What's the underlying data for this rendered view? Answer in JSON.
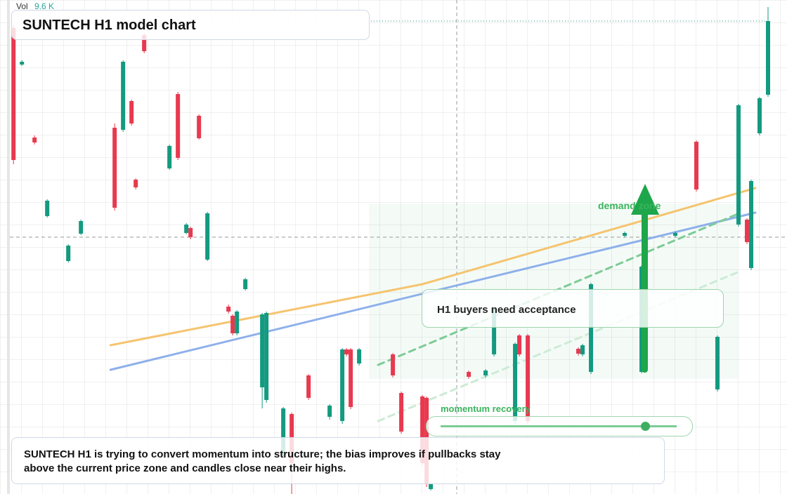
{
  "chart_data": {
    "type": "candlestick",
    "title": "SUNTECH H1 model chart",
    "legend": {
      "label": "Vol",
      "value": "9.6 K"
    },
    "x": [
      0,
      2,
      5,
      8,
      13,
      16,
      24,
      26,
      28,
      29,
      31,
      37,
      39,
      41,
      42,
      44,
      46,
      51,
      52,
      53,
      55,
      59,
      60,
      64,
      66,
      70,
      75,
      78,
      79,
      80,
      82,
      90,
      92,
      97,
      98,
      99,
      108,
      112,
      114,
      119,
      120,
      122,
      134,
      135,
      137,
      145,
      149,
      157,
      162,
      167,
      172,
      174,
      175,
      177,
      179
    ],
    "open": [
      664,
      612,
      508,
      396,
      332,
      371,
      522,
      519,
      560,
      448,
      654,
      464,
      570,
      372,
      379,
      539,
      334,
      267,
      254,
      229,
      292,
      152,
      134,
      54,
      114,
      169,
      110,
      104,
      206,
      206,
      186,
      199,
      144,
      139,
      137,
      7,
      174,
      169,
      199,
      104,
      226,
      226,
      207,
      199,
      174,
      368,
      174,
      368,
      502,
      149,
      384,
      391,
      322,
      514,
      569
    ],
    "high": [
      668,
      618,
      511,
      420,
      356,
      391,
      528,
      618,
      562,
      450,
      657,
      498,
      573,
      386,
      381,
      541,
      402,
      270,
      256,
      262,
      308,
      258,
      260,
      124,
      116,
      171,
      128,
      208,
      208,
      208,
      208,
      201,
      146,
      141,
      139,
      16,
      176,
      178,
      266,
      216,
      228,
      228,
      209,
      214,
      301,
      374,
      326,
      374,
      504,
      226,
      556,
      393,
      448,
      566,
      694
    ],
    "low": [
      470,
      610,
      498,
      394,
      330,
      369,
      404,
      516,
      525,
      434,
      628,
      462,
      476,
      370,
      363,
      505,
      332,
      257,
      226,
      226,
      290,
      122,
      130,
      50,
      0,
      134,
      106,
      100,
      196,
      121,
      183,
      166,
      86,
      40,
      10,
      5,
      164,
      166,
      196,
      100,
      196,
      100,
      197,
      196,
      171,
      366,
      172,
      366,
      431,
      146,
      381,
      356,
      319,
      511,
      566
    ],
    "close": [
      476,
      616,
      501,
      418,
      354,
      389,
      408,
      616,
      528,
      437,
      631,
      496,
      479,
      384,
      366,
      507,
      400,
      260,
      229,
      260,
      306,
      256,
      258,
      122,
      44,
      137,
      126,
      206,
      199,
      124,
      206,
      169,
      89,
      44,
      14,
      14,
      167,
      176,
      264,
      214,
      199,
      104,
      200,
      212,
      299,
      372,
      324,
      372,
      434,
      224,
      554,
      359,
      446,
      564,
      674
    ],
    "up_color": "#139a80",
    "down_color": "#e8394f",
    "xlim": [
      -3.2,
      183.5
    ],
    "ylim": [
      0,
      704
    ],
    "lines": [
      {
        "color": "#f5c46f",
        "x": [
          23,
          97,
          176
        ],
        "values": [
          212,
          299,
          436
        ]
      },
      {
        "color": "#8eb0ea",
        "x": [
          23,
          176
        ],
        "values": [
          177,
          401
        ]
      },
      {
        "color": "#7dcb95",
        "dash": true,
        "x": [
          86.5,
          171.8
        ],
        "values": [
          184,
          399
        ]
      },
      {
        "color": "#cdebd6",
        "dash": true,
        "x": [
          86.5,
          171.8
        ],
        "values": [
          104,
          316
        ]
      }
    ],
    "annotations": [
      "demand zone",
      "H1 buyers need acceptance",
      "momentum recovery"
    ],
    "note": "SUNTECH H1 is trying to convert momentum into structure; the bias improves if pullbacks stay above the current price zone and candles close near their highs."
  }
}
